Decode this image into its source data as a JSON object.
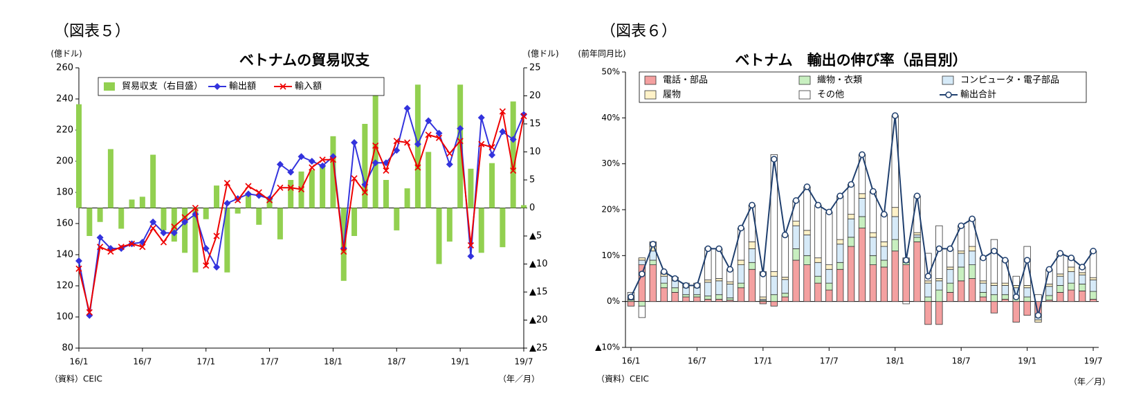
{
  "chart_data": [
    {
      "type": "combo",
      "figure_label": "（図表５）",
      "title": "ベトナムの貿易収支",
      "ylabel": "(億ドル)",
      "y2label": "(億ドル)",
      "source": "（資料）CEIC",
      "x_unit": "（年／月）",
      "categories": [
        "16/1",
        null,
        null,
        null,
        null,
        null,
        "16/7",
        null,
        null,
        null,
        null,
        null,
        "17/1",
        null,
        null,
        null,
        null,
        null,
        "17/7",
        null,
        null,
        null,
        null,
        null,
        "18/1",
        null,
        null,
        null,
        null,
        null,
        "18/7",
        null,
        null,
        null,
        null,
        null,
        "19/1",
        null,
        null,
        null,
        null,
        null,
        "19/7"
      ],
      "ylim": [
        80,
        260
      ],
      "yticks": [
        80,
        100,
        120,
        140,
        160,
        180,
        200,
        220,
        240,
        260
      ],
      "y2lim": [
        -25,
        25
      ],
      "y2ticks": [
        {
          "value": -25,
          "label": "▲25"
        },
        {
          "value": -20,
          "label": "▲20"
        },
        {
          "value": -15,
          "label": "▲15"
        },
        {
          "value": -10,
          "label": "▲10"
        },
        {
          "value": -5,
          "label": "▲5"
        },
        0,
        5,
        10,
        15,
        20,
        25
      ],
      "grid": false,
      "series": [
        {
          "name": "貿易収支（右目盛）",
          "type": "bar",
          "axis": "y2",
          "color": "#92d050",
          "values": [
            18.5,
            -5,
            -2.5,
            10.5,
            -3.7,
            1.5,
            2,
            9.5,
            -4,
            -6,
            -8,
            -11.5,
            -2,
            4,
            -11.5,
            -1,
            2.7,
            -3,
            2,
            -5.6,
            5,
            6.5,
            6.8,
            7.5,
            12.8,
            -13,
            -5,
            15,
            21,
            5,
            -4,
            3.5,
            22,
            10,
            -10,
            -6,
            22,
            7,
            -8,
            8,
            -7,
            19,
            0.5
          ]
        },
        {
          "name": "輸出額",
          "type": "line",
          "marker": "diamond",
          "color": "#3333dd",
          "values": [
            136,
            101,
            151,
            144,
            144,
            147,
            148,
            161,
            154,
            154,
            161,
            166,
            144,
            132,
            173,
            176,
            179,
            178,
            176,
            198,
            193,
            203,
            200,
            197,
            203,
            144,
            212,
            185,
            199,
            199,
            207,
            234,
            211,
            226,
            218,
            198,
            221,
            139,
            228,
            204,
            219,
            214,
            230
          ]
        },
        {
          "name": "輸入額",
          "type": "line",
          "marker": "x",
          "color": "#ee0000",
          "values": [
            131,
            103,
            145,
            142,
            145,
            147,
            145,
            157,
            148,
            158,
            164,
            170,
            133,
            152,
            186,
            175,
            184,
            180,
            175,
            183,
            183,
            182,
            196,
            201,
            201,
            142,
            189,
            180,
            210,
            194,
            213,
            212,
            196,
            217,
            215,
            205,
            213,
            146,
            211,
            209,
            232,
            194,
            229
          ]
        }
      ]
    },
    {
      "type": "combo",
      "stacked": true,
      "figure_label": "（図表６）",
      "title": "ベトナム　輸出の伸び率（品目別）",
      "ylabel": "(前年同月比)",
      "source": "（資料）CEIC",
      "x_unit": "（年／月）",
      "categories": [
        "16/1",
        null,
        null,
        null,
        null,
        null,
        "16/7",
        null,
        null,
        null,
        null,
        null,
        "17/1",
        null,
        null,
        null,
        null,
        null,
        "17/7",
        null,
        null,
        null,
        null,
        null,
        "18/1",
        null,
        null,
        null,
        null,
        null,
        "18/7",
        null,
        null,
        null,
        null,
        null,
        "19/1",
        null,
        null,
        null,
        null,
        null,
        "19/7"
      ],
      "ylim": [
        -10,
        50
      ],
      "yticks": [
        {
          "value": -10,
          "label": "▲10%"
        },
        {
          "value": 0,
          "label": "0%"
        },
        {
          "value": 10,
          "label": "10%"
        },
        {
          "value": 20,
          "label": "20%"
        },
        {
          "value": 30,
          "label": "30%"
        },
        {
          "value": 40,
          "label": "40%"
        },
        {
          "value": 50,
          "label": "50%"
        }
      ],
      "grid": false,
      "series": [
        {
          "name": "電話・部品",
          "type": "bar",
          "color": "#f4a0a0",
          "values": [
            -1,
            8,
            8,
            3,
            2,
            1,
            1,
            0.5,
            0.5,
            0.3,
            3,
            7,
            -0.5,
            -1,
            1,
            9,
            8,
            4,
            2.5,
            7,
            12,
            16,
            8,
            7.5,
            11,
            8,
            13,
            -5,
            -5,
            2,
            4.5,
            5,
            1,
            -2.5,
            0.5,
            -4.5,
            -3,
            -3,
            0.3,
            2,
            2.5,
            2.3,
            0.5
          ]
        },
        {
          "name": "織物・衣類",
          "type": "bar",
          "color": "#c8efc0",
          "values": [
            0.3,
            -1,
            1,
            1,
            1,
            0.5,
            0.5,
            0.7,
            1,
            0.5,
            1,
            1.5,
            0.2,
            1.5,
            0.8,
            2.5,
            2,
            1.5,
            1.5,
            1.5,
            2,
            2.5,
            2,
            1.5,
            2.5,
            0.5,
            1,
            1,
            2.5,
            2,
            3,
            3,
            1,
            1.5,
            1,
            1,
            1,
            -0.5,
            1,
            1.5,
            1.5,
            1.5,
            1.7
          ]
        },
        {
          "name": "コンピュータ・電子部品",
          "type": "bar",
          "color": "#d6eaf8",
          "values": [
            0.2,
            1,
            2,
            1.5,
            1.5,
            1.5,
            1.5,
            3,
            3,
            3,
            4,
            3,
            0.3,
            4,
            3,
            5,
            4.5,
            3,
            3,
            4,
            4,
            4,
            4,
            3,
            5,
            0.5,
            0.5,
            3,
            2,
            3,
            3,
            3,
            2,
            2,
            2,
            2,
            2,
            -0.5,
            2,
            2,
            2.5,
            2,
            2.5
          ]
        },
        {
          "name": "履物",
          "type": "bar",
          "color": "#fff2c8",
          "values": [
            0.2,
            0.5,
            1,
            0.5,
            0.5,
            0.5,
            0.5,
            0.5,
            0.5,
            0.5,
            1,
            1.5,
            0.5,
            1,
            0.5,
            1,
            1,
            1,
            1,
            1,
            1,
            1,
            1,
            1,
            2,
            0.5,
            0.5,
            0.5,
            0.5,
            0.5,
            0.5,
            1,
            0.5,
            0.5,
            0.5,
            0.5,
            0.5,
            -0.5,
            0.5,
            0.5,
            1,
            0.5,
            0.5
          ]
        },
        {
          "name": "その他",
          "type": "bar",
          "color": "#ffffff",
          "values": [
            1.3,
            -2.5,
            1,
            0.5,
            0.3,
            0.5,
            0.5,
            7,
            6.5,
            2.7,
            7,
            8,
            5.5,
            25.5,
            9.2,
            4.5,
            9.5,
            11.5,
            11.5,
            9.5,
            6.5,
            8.5,
            9,
            6,
            20,
            -0.5,
            8,
            6,
            11.5,
            4,
            5.5,
            6,
            5,
            9.5,
            5,
            2,
            8.5,
            1.5,
            3.2,
            4.5,
            2,
            1.2,
            5.8
          ]
        },
        {
          "name": "輸出合計",
          "type": "line",
          "marker": "circle",
          "color": "#1f3f6e",
          "values": [
            1,
            6,
            12.5,
            6.5,
            5,
            3.5,
            3.5,
            11.5,
            11.5,
            7,
            16,
            21,
            6,
            31,
            14.5,
            22,
            25,
            21,
            19.5,
            23,
            25.5,
            32,
            24,
            19,
            40.5,
            9,
            23,
            5.5,
            11.5,
            11.5,
            16.5,
            18,
            9.5,
            11,
            9,
            1,
            9,
            -3,
            7,
            10.5,
            9.5,
            7.5,
            11
          ]
        }
      ]
    }
  ]
}
